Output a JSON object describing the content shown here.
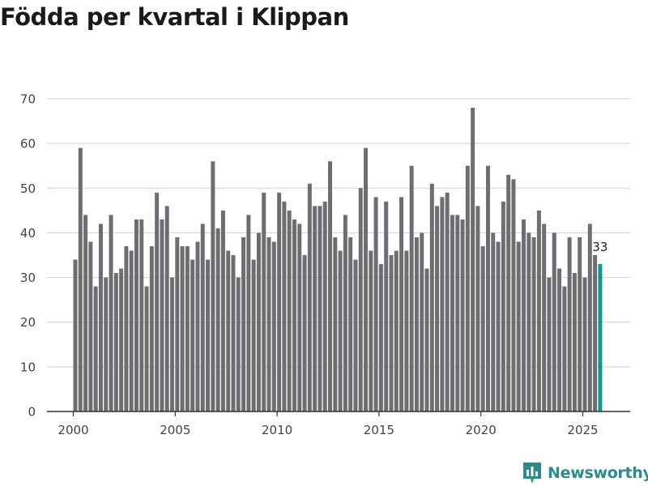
{
  "title": "Födda per kvartal i Klippan",
  "brand": {
    "name": "Newsworthy",
    "color": "#2a8c8c"
  },
  "colors": {
    "bar": "#6e6d72",
    "highlight": "#12998f",
    "grid": "#d9d9d9",
    "axis": "#333333"
  },
  "chart_data": {
    "type": "bar",
    "title": "Födda per kvartal i Klippan",
    "xlabel": "",
    "ylabel": "",
    "ylim": [
      0,
      70
    ],
    "yticks": [
      0,
      10,
      20,
      30,
      40,
      50,
      60,
      70
    ],
    "xticks": [
      2000,
      2005,
      2010,
      2015,
      2020,
      2025
    ],
    "grid": true,
    "start_year": 2000,
    "start_quarter": 1,
    "highlight_last": true,
    "last_value_label": "33",
    "values": [
      34,
      59,
      44,
      38,
      28,
      42,
      30,
      44,
      31,
      32,
      37,
      36,
      43,
      43,
      28,
      37,
      49,
      43,
      46,
      30,
      39,
      37,
      37,
      34,
      38,
      42,
      34,
      56,
      41,
      45,
      36,
      35,
      30,
      39,
      44,
      34,
      40,
      49,
      39,
      38,
      49,
      47,
      45,
      43,
      42,
      35,
      51,
      46,
      46,
      47,
      56,
      39,
      36,
      44,
      39,
      34,
      50,
      59,
      36,
      48,
      33,
      47,
      35,
      36,
      48,
      36,
      55,
      39,
      40,
      32,
      51,
      46,
      48,
      49,
      44,
      44,
      43,
      55,
      68,
      46,
      37,
      55,
      40,
      38,
      47,
      53,
      52,
      38,
      43,
      40,
      39,
      45,
      42,
      30,
      40,
      32,
      28,
      39,
      31,
      39,
      30,
      42,
      35,
      33
    ]
  }
}
